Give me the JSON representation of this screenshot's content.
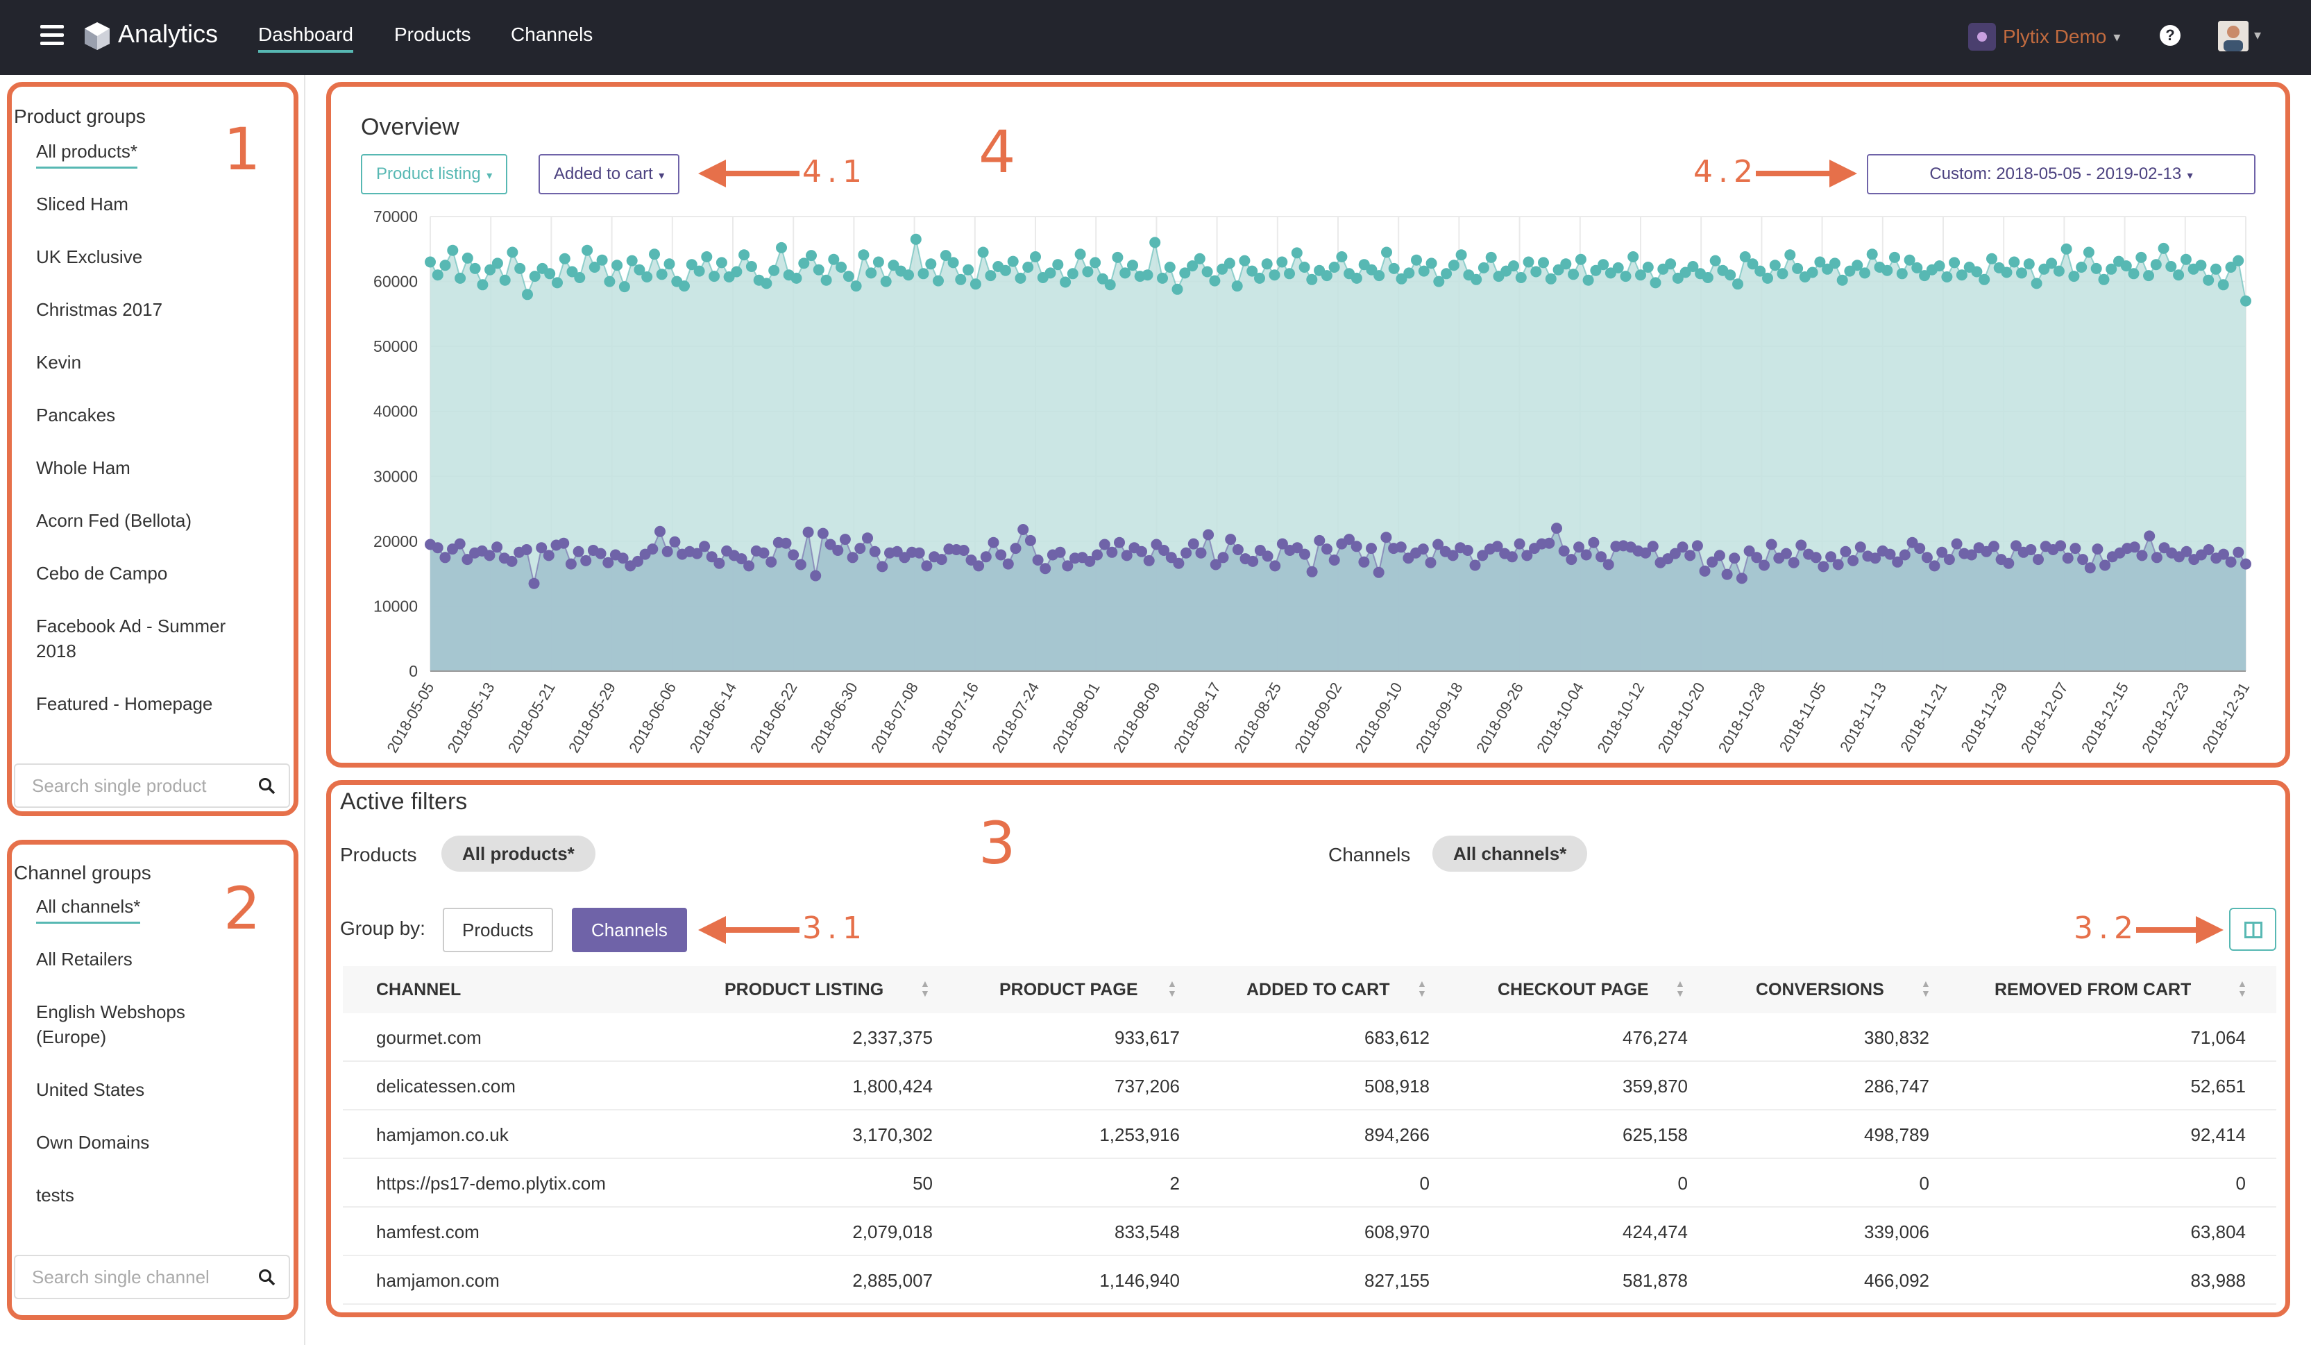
{
  "header": {
    "brand": "Analytics",
    "nav": [
      {
        "label": "Dashboard"
      },
      {
        "label": "Products"
      },
      {
        "label": "Channels"
      }
    ],
    "account": "Plytix Demo",
    "help": "?"
  },
  "sidebar": {
    "product_groups_title": "Product groups",
    "product_groups": [
      {
        "label": "All products*"
      },
      {
        "label": "Sliced Ham"
      },
      {
        "label": "UK Exclusive"
      },
      {
        "label": "Christmas 2017"
      },
      {
        "label": "Kevin"
      },
      {
        "label": "Pancakes"
      },
      {
        "label": "Whole Ham"
      },
      {
        "label": "Acorn Fed (Bellota)"
      },
      {
        "label": "Cebo de Campo"
      },
      {
        "label": "Facebook Ad - Summer"
      },
      {
        "label": "2018"
      },
      {
        "label": "Featured - Homepage"
      }
    ],
    "product_search_placeholder": "Search single product",
    "channel_groups_title": "Channel groups",
    "channel_groups": [
      {
        "label": "All channels*"
      },
      {
        "label": "All Retailers"
      },
      {
        "label": "English Webshops"
      },
      {
        "label": "(Europe)"
      },
      {
        "label": "United States"
      },
      {
        "label": "Own Domains"
      },
      {
        "label": "tests"
      }
    ],
    "channel_search_placeholder": "Search single channel"
  },
  "annotations": {
    "n1": "1",
    "n2": "2",
    "n3": "3",
    "n4": "4",
    "a31": "3.1",
    "a32": "3.2",
    "a41": "4.1",
    "a42": "4.2"
  },
  "overview": {
    "title": "Overview",
    "metric_a": "Product listing",
    "metric_b": "Added to cart",
    "date_range": "Custom: 2018-05-05 - 2019-02-13"
  },
  "chart_data": {
    "type": "area",
    "x_start": "2018-05-05",
    "x_end": "2018-12-31",
    "x_ticks": [
      "2018-05-05",
      "2018-05-13",
      "2018-05-21",
      "2018-05-29",
      "2018-06-06",
      "2018-06-14",
      "2018-06-22",
      "2018-06-30",
      "2018-07-08",
      "2018-07-16",
      "2018-07-24",
      "2018-08-01",
      "2018-08-09",
      "2018-08-17",
      "2018-08-25",
      "2018-09-02",
      "2018-09-10",
      "2018-09-18",
      "2018-09-26",
      "2018-10-04",
      "2018-10-12",
      "2018-10-20",
      "2018-10-28",
      "2018-11-05",
      "2018-11-13",
      "2018-11-21",
      "2018-11-29",
      "2018-12-07",
      "2018-12-15",
      "2018-12-23",
      "2018-12-31"
    ],
    "y_ticks": [
      "0",
      "10000",
      "20000",
      "30000",
      "40000",
      "50000",
      "60000",
      "70000"
    ],
    "ylim": [
      0,
      70000
    ],
    "series": [
      {
        "name": "Product listing",
        "color": "#57b8b3",
        "fill": "#c2e2df",
        "values": [
          63000,
          61000,
          62500,
          64800,
          60500,
          63600,
          62000,
          59500,
          61800,
          62800,
          60200,
          64500,
          62000,
          58000,
          60800,
          62000,
          61200,
          59800,
          63500,
          61500,
          60600,
          64800,
          62200,
          63300,
          60000,
          62500,
          59200,
          63200,
          61800,
          60700,
          64200,
          61100,
          62700,
          60000,
          59300,
          62600,
          61600,
          63800,
          60800,
          62900,
          60700,
          61500,
          64100,
          62300,
          60200,
          59700,
          61700,
          65200,
          61000,
          60500,
          62800,
          64000,
          61800,
          60200,
          63400,
          62200,
          60800,
          59300,
          64100,
          61300,
          63000,
          60000,
          62500,
          61600,
          61000,
          66500,
          61200,
          62700,
          60100,
          64000,
          62900,
          60300,
          61800,
          59600,
          64500,
          60900,
          62300,
          61700,
          63100,
          60500,
          62200,
          63800,
          60600,
          61300,
          62600,
          59900,
          61200,
          64200,
          61500,
          62900,
          60400,
          59500,
          63700,
          61300,
          62500,
          60800,
          61000,
          66000,
          60500,
          62200,
          58800,
          61300,
          62400,
          63500,
          61500,
          60100,
          61900,
          62800,
          59300,
          63200,
          61600,
          60500,
          62700,
          61000,
          63000,
          61200,
          64400,
          62200,
          60300,
          61700,
          60900,
          62200,
          63800,
          61200,
          60500,
          62600,
          61800,
          60900,
          64500,
          62000,
          60400,
          61300,
          63300,
          61600,
          62800,
          60000,
          61200,
          62500,
          64100,
          61000,
          60300,
          62100,
          63700,
          60800,
          61600,
          62400,
          60600,
          63000,
          61500,
          62900,
          60400,
          61800,
          62700,
          61100,
          63400,
          60200,
          61700,
          62600,
          61300,
          62100,
          60800,
          63800,
          61000,
          62200,
          59800,
          61900,
          62700,
          60500,
          61400,
          62300,
          61200,
          60600,
          63200,
          61700,
          61000,
          59600,
          63800,
          62700,
          61600,
          60500,
          62500,
          61200,
          64100,
          62000,
          60700,
          61400,
          63000,
          61900,
          62800,
          60200,
          61600,
          62500,
          61300,
          64200,
          62200,
          61700,
          63700,
          61200,
          63300,
          62100,
          60900,
          61800,
          62400,
          60700,
          62900,
          61000,
          62200,
          61500,
          60300,
          63500,
          62100,
          61400,
          63000,
          61300,
          62700,
          59700,
          61900,
          62800,
          61600,
          65000,
          60800,
          62200,
          64500,
          62000,
          60300,
          61900,
          63100,
          62400,
          61200,
          63700,
          60900,
          62600,
          65100,
          62300,
          61000,
          63400,
          61900,
          62500,
          60200,
          61900,
          59500,
          62200,
          63200,
          57000
        ]
      },
      {
        "name": "Added to cart",
        "color": "#6f63a8",
        "fill": "#a0bfcd",
        "values": [
          19500,
          19000,
          17500,
          18800,
          19600,
          17200,
          18200,
          18500,
          17800,
          19100,
          17400,
          16900,
          18300,
          18700,
          13500,
          19000,
          17800,
          19400,
          19700,
          16500,
          18400,
          17000,
          18600,
          18100,
          16700,
          17900,
          17400,
          16200,
          16900,
          18000,
          18800,
          21500,
          18400,
          19900,
          18000,
          18400,
          18100,
          19200,
          17600,
          16600,
          18500,
          17800,
          17300,
          16200,
          18500,
          18200,
          16800,
          19800,
          19700,
          17900,
          16400,
          21400,
          14700,
          21200,
          19500,
          18600,
          20300,
          17500,
          18900,
          20500,
          18400,
          16100,
          18200,
          18400,
          17500,
          18300,
          18200,
          16200,
          17600,
          17200,
          18800,
          18700,
          18600,
          17100,
          16200,
          17600,
          19800,
          17900,
          16500,
          18900,
          21800,
          20100,
          17100,
          15800,
          17900,
          18300,
          16200,
          17400,
          17500,
          16900,
          17900,
          19500,
          18300,
          19800,
          17800,
          19000,
          18400,
          17000,
          19500,
          18600,
          17500,
          16600,
          18200,
          19600,
          18200,
          21000,
          16400,
          17500,
          20300,
          18700,
          17300,
          16900,
          18600,
          17700,
          16200,
          19600,
          18600,
          19000,
          18000,
          15300,
          20100,
          18800,
          17100,
          19600,
          20300,
          19200,
          16800,
          18900,
          15200,
          20600,
          18900,
          19100,
          17400,
          18200,
          18800,
          16700,
          19500,
          18400,
          17800,
          19000,
          18600,
          16300,
          17800,
          18800,
          19200,
          18100,
          17600,
          19600,
          17800,
          18900,
          19600,
          19700,
          22000,
          18500,
          17200,
          19100,
          17900,
          19800,
          17600,
          16400,
          19200,
          19300,
          19100,
          18500,
          18200,
          19200,
          16700,
          17300,
          18100,
          19100,
          17800,
          19300,
          15400,
          16800,
          17800,
          14900,
          17400,
          14300,
          18500,
          17500,
          16300,
          19500,
          17400,
          18100,
          16700,
          19400,
          18000,
          17500,
          16100,
          17600,
          16400,
          18400,
          17000,
          19100,
          17700,
          17400,
          18500,
          18000,
          16800,
          17900,
          19800,
          18900,
          17500,
          16200,
          18300,
          17200,
          19600,
          18100,
          17900,
          19000,
          18400,
          19200,
          17200,
          16600,
          19300,
          18300,
          18700,
          17200,
          19200,
          18700,
          19300,
          17400,
          18900,
          17200,
          15900,
          18800,
          16300,
          17600,
          18200,
          18900,
          19100,
          17800,
          20800,
          17500,
          19000,
          18200,
          17600,
          18400,
          17200,
          17900,
          18700,
          17400,
          18000,
          16800,
          18300,
          16500
        ]
      }
    ]
  },
  "filters": {
    "title": "Active filters",
    "products_label": "Products",
    "products_value": "All products*",
    "channels_label": "Channels",
    "channels_value": "All channels*",
    "group_by_label": "Group by:",
    "group_products": "Products",
    "group_channels": "Channels"
  },
  "table": {
    "columns": [
      "CHANNEL",
      "PRODUCT LISTING",
      "PRODUCT PAGE",
      "ADDED TO CART",
      "CHECKOUT PAGE",
      "CONVERSIONS",
      "REMOVED FROM CART"
    ],
    "rows": [
      [
        "gourmet.com",
        "2,337,375",
        "933,617",
        "683,612",
        "476,274",
        "380,832",
        "71,064"
      ],
      [
        "delicatessen.com",
        "1,800,424",
        "737,206",
        "508,918",
        "359,870",
        "286,747",
        "52,651"
      ],
      [
        "hamjamon.co.uk",
        "3,170,302",
        "1,253,916",
        "894,266",
        "625,158",
        "498,789",
        "92,414"
      ],
      [
        "https://ps17-demo.plytix.com",
        "50",
        "2",
        "0",
        "0",
        "0",
        "0"
      ],
      [
        "hamfest.com",
        "2,079,018",
        "833,548",
        "608,970",
        "424,474",
        "339,006",
        "63,804"
      ],
      [
        "hamjamon.com",
        "2,885,007",
        "1,146,940",
        "827,155",
        "581,878",
        "466,092",
        "83,988"
      ]
    ]
  }
}
